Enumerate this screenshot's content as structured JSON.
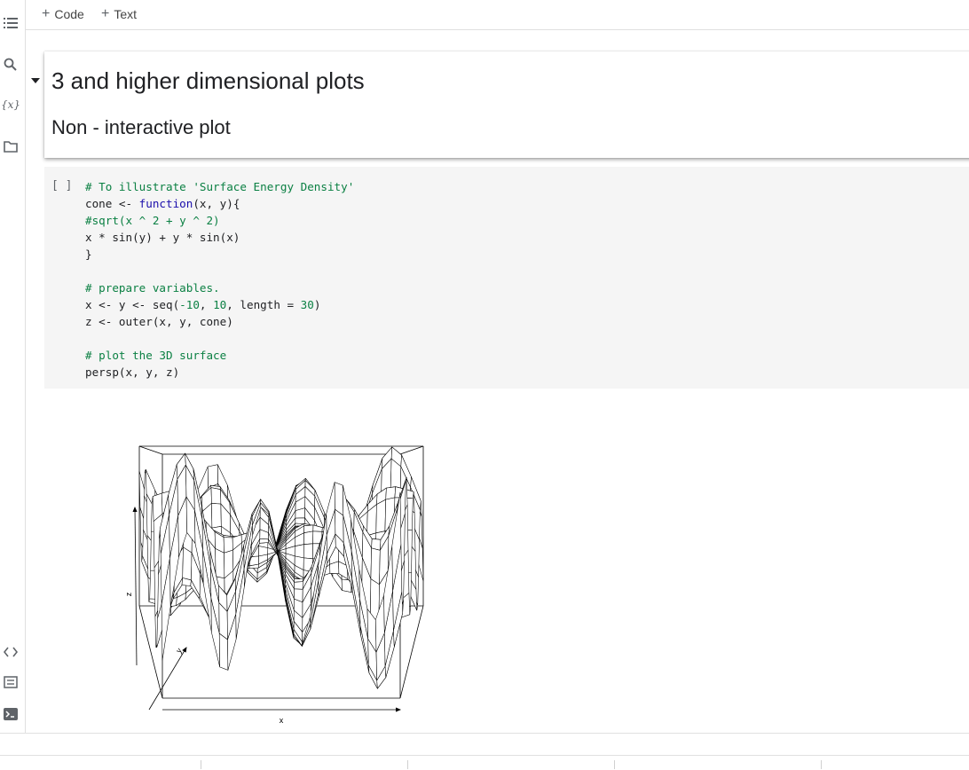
{
  "toolbar": {
    "add_code": "Code",
    "add_text": "Text"
  },
  "sidebar": {
    "icons": [
      "table-of-contents-icon",
      "search-icon",
      "variables-icon",
      "files-icon",
      "code-snippets-icon",
      "command-palette-icon",
      "terminal-icon"
    ],
    "variables_glyph": "{x}"
  },
  "text_cell": {
    "heading": "3 and higher dimensional plots",
    "subheading": "Non - interactive plot"
  },
  "code_cell": {
    "run_label": "[ ]",
    "lines": [
      "# To illustrate 'Surface Energy Density'",
      "cone <- function(x, y){",
      "#sqrt(x ^ 2 + y ^ 2)",
      "x * sin(y) + y * sin(x)",
      "}",
      "",
      "# prepare variables.",
      "x <- y <- seq(-10, 10, length = 30)",
      "z <- outer(x, y, cone)",
      "",
      "# plot the 3D surface",
      "persp(x, y, z)"
    ]
  },
  "plot": {
    "type": "persp-surface",
    "function": "x * sin(y) + y * sin(x)",
    "x_range": [
      -10,
      10
    ],
    "y_range": [
      -10,
      10
    ],
    "grid_length": 30,
    "axis_labels": {
      "x": "x",
      "y": "y",
      "z": "z"
    }
  }
}
